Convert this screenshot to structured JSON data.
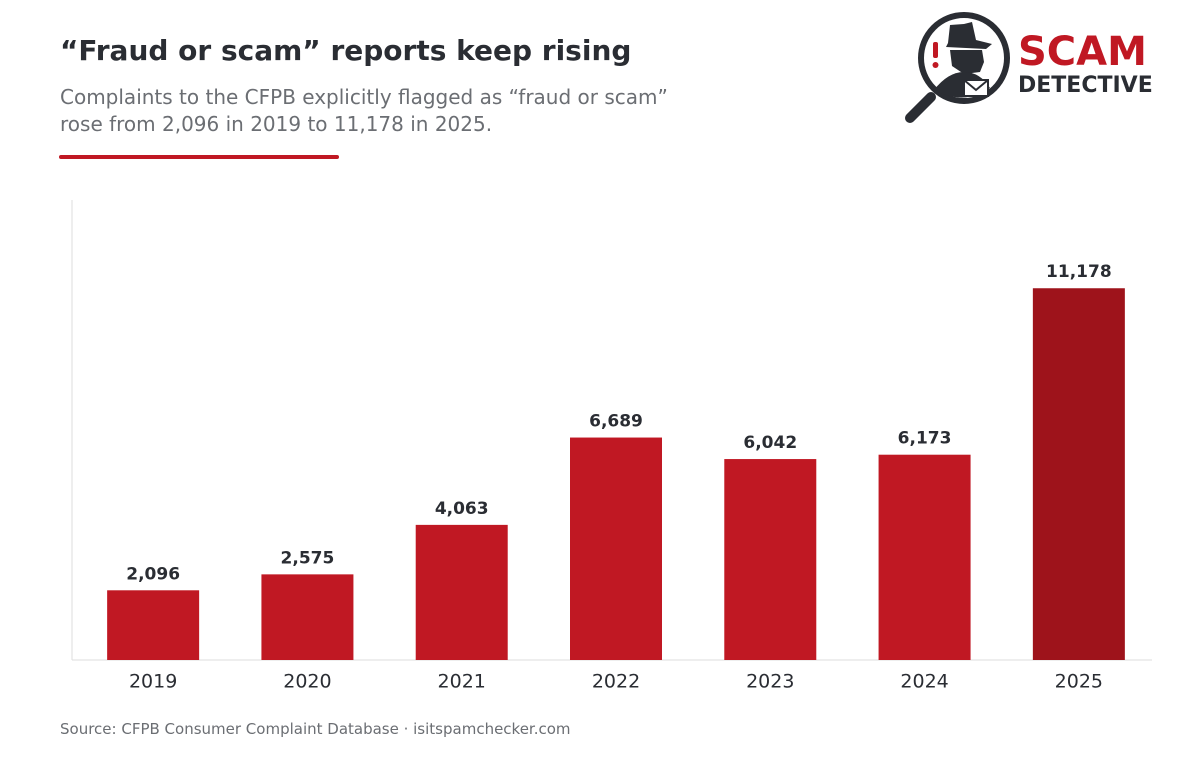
{
  "header": {
    "title": "“Fraud or scam” reports keep rising",
    "subtitle_line1": "Complaints to the CFPB explicitly flagged as “fraud or scam”",
    "subtitle_line2": "rose from 2,096 in 2019 to 11,178 in 2025."
  },
  "logo": {
    "word1": "SCAM",
    "word2": "DETECTIVE",
    "icon": "detective-magnifier-icon"
  },
  "footer": {
    "source": "Source: CFPB Consumer Complaint Database  ·  isitspamchecker.com"
  },
  "colors": {
    "bar": "#c01823",
    "highlight_bar": "#9e131b",
    "accent": "#c01823",
    "text_dark": "#2a2d33",
    "text_muted": "#6b6e73",
    "axis": "#dddddd"
  },
  "chart_data": {
    "type": "bar",
    "categories": [
      "2019",
      "2020",
      "2021",
      "2022",
      "2023",
      "2024",
      "2025"
    ],
    "values": [
      2096,
      2575,
      4063,
      6689,
      6042,
      6173,
      11178
    ],
    "value_labels": [
      "2,096",
      "2,575",
      "4,063",
      "6,689",
      "6,042",
      "6,173",
      "11,178"
    ],
    "highlight_category": "2025",
    "ylim": [
      0,
      13200
    ],
    "grid": false,
    "y_axis_ticks": false,
    "title": "“Fraud or scam” reports keep rising",
    "xlabel": "",
    "ylabel": ""
  }
}
